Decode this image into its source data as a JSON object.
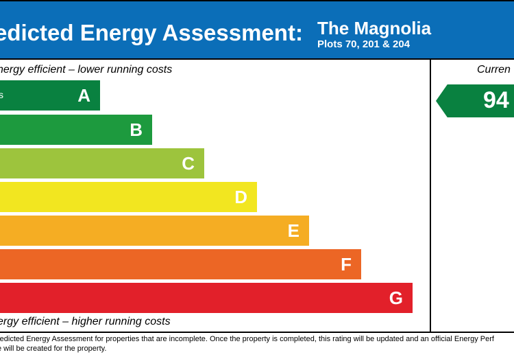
{
  "header": {
    "title": "edicted Energy Assessment:",
    "house_name": "The Magnolia",
    "plots": "Plots 70, 201 & 204"
  },
  "top_caption": "nergy efficient – lower running costs",
  "bottom_caption": "ergy efficient – higher running costs",
  "current_column": {
    "label": "Curren",
    "score": "94",
    "score_band": "A"
  },
  "bands": [
    {
      "letter": "A",
      "range": "s",
      "color": "#098140"
    },
    {
      "letter": "B",
      "range": "",
      "color": "#1d9a3e"
    },
    {
      "letter": "C",
      "range": "",
      "color": "#9dc43d"
    },
    {
      "letter": "D",
      "range": "",
      "color": "#f2e620"
    },
    {
      "letter": "E",
      "range": "",
      "color": "#f5ad23"
    },
    {
      "letter": "F",
      "range": "",
      "color": "#ec6625"
    },
    {
      "letter": "G",
      "range": "",
      "color": "#e2202a"
    }
  ],
  "footnote": {
    "line1": "redicted Energy Assessment for properties that are incomplete. Once the property is completed, this rating will be updated and an official Energy Perf",
    "line2": "e will be created for the property."
  }
}
